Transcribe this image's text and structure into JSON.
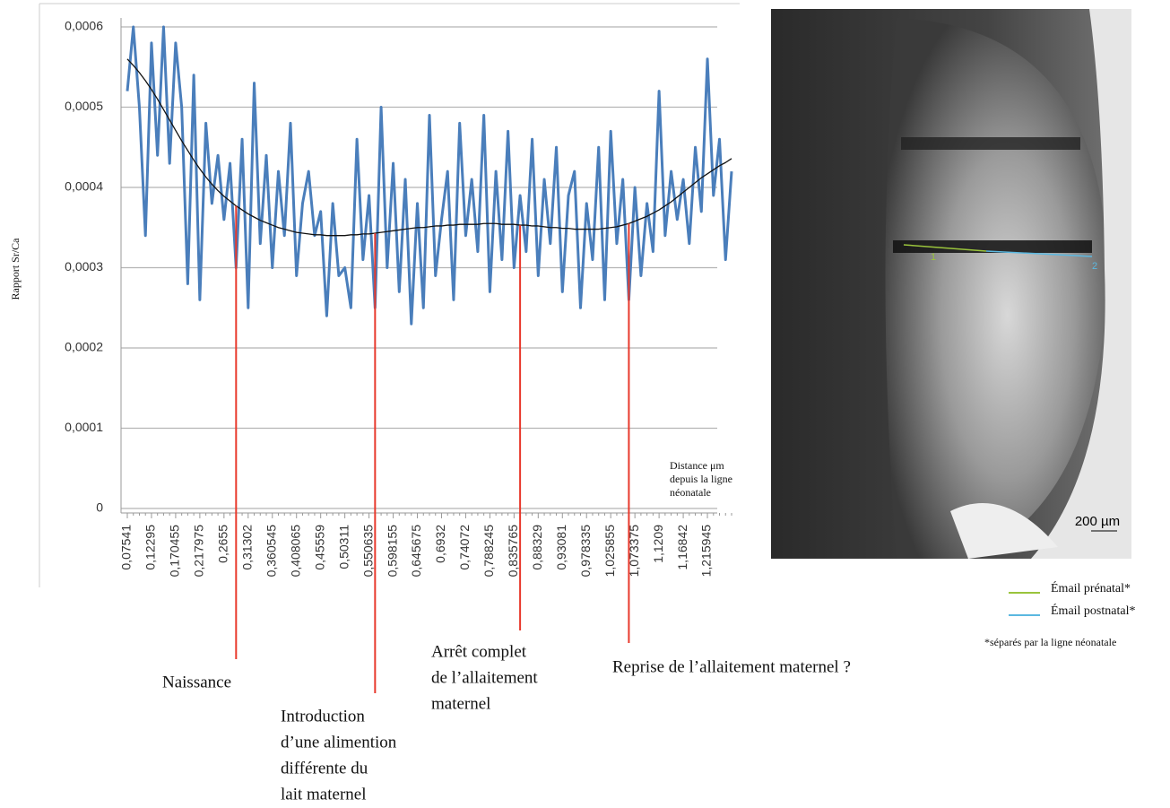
{
  "chart_data": {
    "type": "line",
    "ylabel": "Rapport Sr/Ca",
    "xlabel": [
      "Distance μm",
      "depuis la ligne",
      "néonatale"
    ],
    "ylim": [
      0,
      0.0006
    ],
    "yticks": [
      0,
      {
        "value": 0.0001,
        "label": "0,0001"
      },
      {
        "value": 0.0002,
        "label": "0,0002"
      },
      {
        "value": 0.0003,
        "label": "0,0003"
      },
      {
        "value": 0.0004,
        "label": "0,0004"
      },
      {
        "value": 0.0005,
        "label": "0,0005"
      },
      {
        "value": 0.0006,
        "label": "0,0006"
      }
    ],
    "grid": true,
    "categories": [
      "0,07541",
      null,
      null,
      null,
      "0,12295",
      null,
      null,
      null,
      "0,170455",
      null,
      null,
      null,
      "0,217975",
      null,
      null,
      null,
      "0,2655",
      null,
      null,
      null,
      "0,31302",
      null,
      null,
      null,
      "0,360545",
      null,
      null,
      null,
      "0,408065",
      null,
      null,
      null,
      "0,45559",
      null,
      null,
      null,
      "0,50311",
      null,
      null,
      null,
      "0,550635",
      null,
      null,
      null,
      "0,598155",
      null,
      null,
      null,
      "0,645675",
      null,
      null,
      null,
      "0,6932",
      null,
      null,
      null,
      "0,74072",
      null,
      null,
      null,
      "0,788245",
      null,
      null,
      null,
      "0,835765",
      null,
      null,
      null,
      "0,88329",
      null,
      null,
      null,
      "0,93081",
      null,
      null,
      null,
      "0,978335",
      null,
      null,
      null,
      "1,025855",
      null,
      null,
      null,
      "1,073375",
      null,
      null,
      null,
      "1,1209",
      null,
      null,
      null,
      "1,16842",
      null,
      null,
      null,
      "1,215945",
      null,
      null,
      null,
      null
    ],
    "series": [
      {
        "color": "#4a7ebb",
        "values": [
          0.00052,
          0.0006,
          0.0005,
          0.00034,
          0.00058,
          0.00044,
          0.0006,
          0.00043,
          0.00058,
          0.0005,
          0.00028,
          0.00054,
          0.00026,
          0.00048,
          0.00038,
          0.00044,
          0.00036,
          0.00043,
          0.0003,
          0.00046,
          0.00025,
          0.00053,
          0.00033,
          0.00044,
          0.0003,
          0.00042,
          0.00034,
          0.00048,
          0.00029,
          0.00038,
          0.00042,
          0.00034,
          0.00037,
          0.00024,
          0.00038,
          0.00029,
          0.0003,
          0.00025,
          0.00046,
          0.00031,
          0.00039,
          0.00025,
          0.0005,
          0.0003,
          0.00043,
          0.00027,
          0.00041,
          0.00023,
          0.00038,
          0.00025,
          0.00049,
          0.00029,
          0.00036,
          0.00042,
          0.00026,
          0.00048,
          0.00034,
          0.00041,
          0.00032,
          0.00049,
          0.00027,
          0.00042,
          0.00031,
          0.00047,
          0.0003,
          0.00039,
          0.00032,
          0.00046,
          0.00029,
          0.00041,
          0.00033,
          0.00045,
          0.00027,
          0.00039,
          0.00042,
          0.00025,
          0.00038,
          0.00031,
          0.00045,
          0.00026,
          0.00047,
          0.00033,
          0.00041,
          0.00026,
          0.0004,
          0.00029,
          0.00038,
          0.00032,
          0.00052,
          0.00034,
          0.00042,
          0.00036,
          0.00041,
          0.00033,
          0.00045,
          0.00037,
          0.00056,
          0.00039,
          0.00046,
          0.00031,
          0.00042
        ]
      },
      {
        "color": "#111111",
        "values": [
          0.00056,
          0.000552,
          0.000543,
          0.000533,
          0.000522,
          0.00051,
          0.000497,
          0.000484,
          0.000471,
          0.000458,
          0.000446,
          0.000434,
          0.000423,
          0.000413,
          0.000404,
          0.000396,
          0.000389,
          0.000383,
          0.000377,
          0.000372,
          0.000367,
          0.000363,
          0.000359,
          0.000356,
          0.000353,
          0.00035,
          0.000348,
          0.000346,
          0.000344,
          0.000343,
          0.000342,
          0.000341,
          0.000341,
          0.00034,
          0.00034,
          0.00034,
          0.00034,
          0.000341,
          0.000341,
          0.000342,
          0.000342,
          0.000343,
          0.000344,
          0.000345,
          0.000346,
          0.000347,
          0.000348,
          0.000349,
          0.00035,
          0.00035,
          0.000351,
          0.000352,
          0.000352,
          0.000353,
          0.000353,
          0.000354,
          0.000354,
          0.000354,
          0.000354,
          0.000355,
          0.000355,
          0.000355,
          0.000354,
          0.000354,
          0.000354,
          0.000353,
          0.000353,
          0.000352,
          0.000352,
          0.000351,
          0.00035,
          0.00035,
          0.000349,
          0.000349,
          0.000348,
          0.000348,
          0.000348,
          0.000348,
          0.000348,
          0.000349,
          0.00035,
          0.000351,
          0.000353,
          0.000355,
          0.000358,
          0.000361,
          0.000364,
          0.000368,
          0.000372,
          0.000377,
          0.000382,
          0.000388,
          0.000394,
          0.0004,
          0.000406,
          0.000412,
          0.000417,
          0.000422,
          0.000427,
          0.000431,
          0.000436
        ]
      }
    ],
    "annotations": [
      {
        "text": [
          "Naissance"
        ],
        "category_index": 18,
        "color": "#e8392c"
      },
      {
        "text": [
          "Introduction",
          "d’une alimention",
          "différente du",
          "lait maternel"
        ],
        "category_index": 41,
        "color": "#e8392c"
      },
      {
        "text": [
          "Arrêt complet",
          "de l’allaitement",
          "maternel"
        ],
        "category_index": 65,
        "color": "#e8392c"
      },
      {
        "text": [
          "Reprise de l’allaitement maternel ?"
        ],
        "category_index": 83,
        "color": "#e8392c"
      }
    ]
  },
  "image": {
    "markers": [
      "1",
      "2"
    ],
    "scale_bar": "200 µm",
    "legend": [
      {
        "name": "Émail prénatal*",
        "color": "#9ac43c"
      },
      {
        "name": "Émail postnatal*",
        "color": "#5bb8e0"
      }
    ],
    "footnote": "*séparés par la ligne néonatale"
  }
}
